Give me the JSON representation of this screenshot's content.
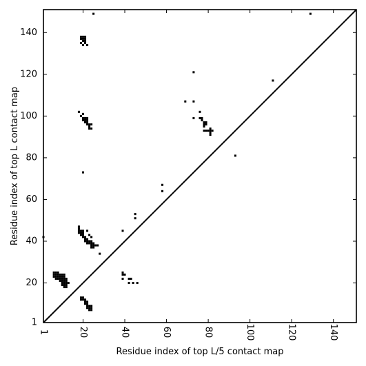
{
  "chart_data": {
    "type": "scatter",
    "xlabel": "Residue index of top L/5 contact map",
    "ylabel": "Residue index of top L contact map",
    "xlim": [
      1,
      151
    ],
    "ylim": [
      1,
      151
    ],
    "x_ticks": [
      1,
      20,
      40,
      60,
      80,
      100,
      120,
      140
    ],
    "y_ticks": [
      1,
      20,
      40,
      60,
      80,
      100,
      120,
      140
    ],
    "grid": false,
    "diagonal_line": true,
    "marker": "square",
    "color": "#000000",
    "series": [
      {
        "points": [
          [
            25,
            149
          ],
          [
            129,
            149
          ],
          [
            19,
            138
          ],
          [
            20,
            138
          ],
          [
            21,
            138
          ],
          [
            19,
            137
          ],
          [
            20,
            137
          ],
          [
            21,
            137
          ],
          [
            20,
            136
          ],
          [
            21,
            136
          ],
          [
            19,
            135
          ],
          [
            21,
            135
          ],
          [
            20,
            134
          ],
          [
            22,
            134
          ],
          [
            73,
            121
          ],
          [
            111,
            117
          ],
          [
            69,
            107
          ],
          [
            73,
            107
          ],
          [
            18,
            102
          ],
          [
            20,
            101
          ],
          [
            19,
            100
          ],
          [
            20,
            99
          ],
          [
            21,
            99
          ],
          [
            22,
            99
          ],
          [
            20,
            98
          ],
          [
            21,
            98
          ],
          [
            22,
            98
          ],
          [
            21,
            97
          ],
          [
            22,
            97
          ],
          [
            22,
            96
          ],
          [
            23,
            96
          ],
          [
            24,
            96
          ],
          [
            23,
            95
          ],
          [
            23,
            94
          ],
          [
            24,
            94
          ],
          [
            76,
            102
          ],
          [
            73,
            99
          ],
          [
            76,
            99
          ],
          [
            77,
            99
          ],
          [
            77,
            98
          ],
          [
            78,
            97
          ],
          [
            79,
            97
          ],
          [
            78,
            96
          ],
          [
            79,
            96
          ],
          [
            78,
            95
          ],
          [
            78,
            93
          ],
          [
            79,
            93
          ],
          [
            80,
            93
          ],
          [
            81,
            93
          ],
          [
            82,
            93
          ],
          [
            81,
            94
          ],
          [
            81,
            92
          ],
          [
            81,
            91
          ],
          [
            93,
            81
          ],
          [
            20,
            73
          ],
          [
            58,
            67
          ],
          [
            58,
            64
          ],
          [
            45,
            53
          ],
          [
            45,
            51
          ],
          [
            18,
            47
          ],
          [
            18,
            46
          ],
          [
            18,
            45
          ],
          [
            19,
            45
          ],
          [
            20,
            45
          ],
          [
            22,
            45
          ],
          [
            39,
            45
          ],
          [
            18,
            44
          ],
          [
            19,
            44
          ],
          [
            20,
            44
          ],
          [
            19,
            43
          ],
          [
            20,
            43
          ],
          [
            20,
            42
          ],
          [
            21,
            42
          ],
          [
            23,
            43
          ],
          [
            21,
            41
          ],
          [
            22,
            41
          ],
          [
            24,
            42
          ],
          [
            21,
            40
          ],
          [
            22,
            40
          ],
          [
            23,
            40
          ],
          [
            24,
            40
          ],
          [
            22,
            39
          ],
          [
            23,
            39
          ],
          [
            24,
            39
          ],
          [
            25,
            39
          ],
          [
            24,
            38
          ],
          [
            25,
            38
          ],
          [
            26,
            38
          ],
          [
            27,
            38
          ],
          [
            24,
            37
          ],
          [
            25,
            37
          ],
          [
            28,
            34
          ],
          [
            1,
            42
          ],
          [
            6,
            25
          ],
          [
            7,
            25
          ],
          [
            8,
            25
          ],
          [
            6,
            24
          ],
          [
            7,
            24
          ],
          [
            8,
            24
          ],
          [
            9,
            24
          ],
          [
            10,
            24
          ],
          [
            11,
            24
          ],
          [
            6,
            23
          ],
          [
            7,
            23
          ],
          [
            8,
            23
          ],
          [
            9,
            23
          ],
          [
            10,
            23
          ],
          [
            11,
            23
          ],
          [
            7,
            22
          ],
          [
            8,
            22
          ],
          [
            9,
            22
          ],
          [
            10,
            22
          ],
          [
            11,
            22
          ],
          [
            12,
            22
          ],
          [
            9,
            21
          ],
          [
            10,
            21
          ],
          [
            11,
            21
          ],
          [
            12,
            21
          ],
          [
            10,
            20
          ],
          [
            11,
            20
          ],
          [
            12,
            20
          ],
          [
            13,
            20
          ],
          [
            10,
            19
          ],
          [
            11,
            19
          ],
          [
            12,
            19
          ],
          [
            11,
            18
          ],
          [
            12,
            18
          ],
          [
            39,
            25
          ],
          [
            39,
            24
          ],
          [
            40,
            24
          ],
          [
            39,
            22
          ],
          [
            42,
            22
          ],
          [
            43,
            22
          ],
          [
            42,
            20
          ],
          [
            44,
            20
          ],
          [
            46,
            20
          ],
          [
            19,
            13
          ],
          [
            20,
            13
          ],
          [
            19,
            12
          ],
          [
            20,
            12
          ],
          [
            21,
            12
          ],
          [
            21,
            11
          ],
          [
            22,
            11
          ],
          [
            21,
            10
          ],
          [
            22,
            10
          ],
          [
            22,
            9
          ],
          [
            23,
            9
          ],
          [
            24,
            9
          ],
          [
            22,
            8
          ],
          [
            23,
            8
          ],
          [
            24,
            8
          ],
          [
            23,
            7
          ],
          [
            24,
            7
          ]
        ]
      }
    ]
  }
}
